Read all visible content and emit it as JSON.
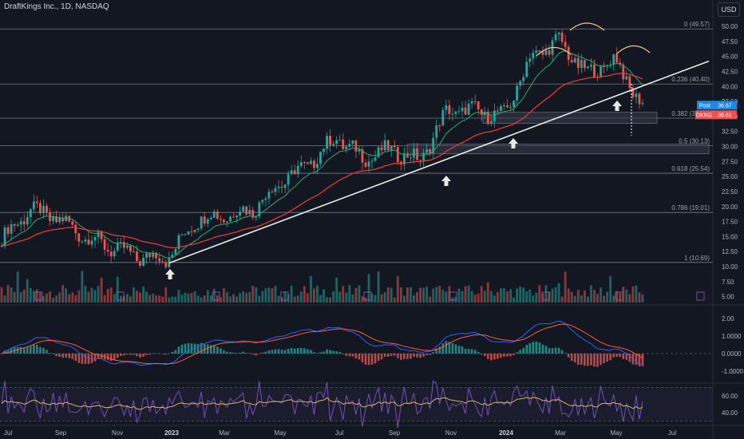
{
  "header": {
    "symbol_line": "DraftKings Inc., 1D, NASDAQ",
    "currency_button": "USD"
  },
  "colors": {
    "background": "#131722",
    "up": "#26a69a",
    "down": "#ef5350",
    "ema_short": "#2e9e6a",
    "ema_long": "#e53935",
    "trendline": "#e8e8e8",
    "macd_line": "#2962ff",
    "signal_line": "#ff5a36",
    "rsi": "#7e57c2",
    "rsi_ma": "#d4b36a",
    "post_badge": "#1e88e5",
    "ticker_badge": "#ef5350"
  },
  "badges": {
    "post_label": "Post",
    "post_value": "36.67",
    "ticker_label": "DKNG",
    "ticker_value": "36.61"
  },
  "chart_data": [
    {
      "type": "candlestick",
      "title": "DraftKings Inc., 1D, NASDAQ",
      "y_ticks": [
        "50.00",
        "47.50",
        "45.00",
        "42.50",
        "40.00",
        "37.50",
        "35.00",
        "32.50",
        "30.00",
        "27.50",
        "25.00",
        "22.50",
        "20.00",
        "17.50",
        "15.00",
        "12.50",
        "10.00",
        "7.50",
        "5.00"
      ],
      "x_ticks": [
        "Jul",
        "Sep",
        "Nov",
        "2023",
        "Mar",
        "May",
        "Jul",
        "Sep",
        "Nov",
        "2024",
        "Mar",
        "May",
        "Jul"
      ],
      "ylim": [
        5,
        51
      ],
      "fib_levels": [
        {
          "label": "0 (49.57)",
          "value": 49.57
        },
        {
          "label": "0.236 (40.40)",
          "value": 40.4
        },
        {
          "label": "0.382 (34.72)",
          "value": 34.72
        },
        {
          "label": "0.5 (30.13)",
          "value": 30.13
        },
        {
          "label": "0.618 (25.54)",
          "value": 25.54
        },
        {
          "label": "0.786 (19.01)",
          "value": 19.01
        },
        {
          "label": "1 (10.69)",
          "value": 10.69
        }
      ],
      "close_path": [
        [
          "Jul",
          14.5
        ],
        [
          "Aug",
          19.5
        ],
        [
          "Sep",
          18.0
        ],
        [
          "Oct",
          15.0
        ],
        [
          "Nov",
          13.0
        ],
        [
          "Dec",
          11.5
        ],
        [
          "2023",
          11.5
        ],
        [
          "Feb",
          18.0
        ],
        [
          "Mar",
          18.5
        ],
        [
          "Apr",
          19.5
        ],
        [
          "May",
          24.0
        ],
        [
          "Jun",
          27.0
        ],
        [
          "Jul",
          31.5
        ],
        [
          "Aug",
          28.0
        ],
        [
          "Sep",
          29.5
        ],
        [
          "Oct",
          27.5
        ],
        [
          "Nov",
          36.0
        ],
        [
          "Dec",
          36.0
        ],
        [
          "2024",
          35.0
        ],
        [
          "Feb",
          45.0
        ],
        [
          "Mar",
          47.5
        ],
        [
          "Apr",
          42.0
        ],
        [
          "May",
          44.5
        ],
        [
          "late May",
          36.6
        ]
      ],
      "series": [
        {
          "name": "Post",
          "last": 36.67
        },
        {
          "name": "DKNG",
          "last": 36.61
        }
      ],
      "annotations": [
        "head-and-shoulders arcs",
        "support bounce arrows",
        "uptrend line",
        "reclaim zone 34.72–36",
        "zone near 30.13"
      ]
    },
    {
      "type": "volume",
      "y_ticks": []
    },
    {
      "type": "macd",
      "y_ticks": [
        "2.00",
        "1.0000",
        "0.0000",
        "-1.0000"
      ],
      "ylim": [
        -1.2,
        2.4
      ]
    },
    {
      "type": "rsi",
      "y_ticks": [
        "60.00",
        "40.00"
      ],
      "ylim": [
        20,
        80
      ]
    }
  ]
}
